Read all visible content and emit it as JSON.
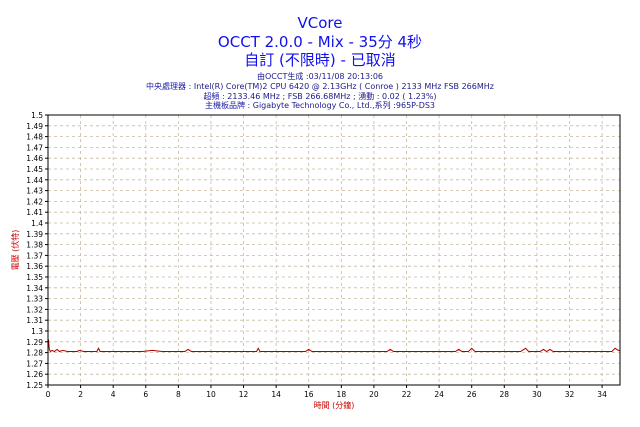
{
  "header": {
    "title": "VCore",
    "subtitle1": "OCCT 2.0.0 - Mix - 35分 4秒",
    "subtitle2": "自訂 (不限時) - 已取消",
    "generated": "由OCCT生成 :03/11/08 20:13:06",
    "cpu_label": "中央處理器 :",
    "cpu_value": "Intel(R) Core(TM)2 CPU 6420 @ 2.13GHz ( Conroe ) 2133 MHz FSB 266MHz",
    "freq_label": "超頻 :",
    "freq_value": "2133.46 MHz ; FSB 266.68MHz ; 湧動 : 0.02 ( 1.23%)",
    "board_label": "主機板品牌 :",
    "board_value": "Gigabyte Technology Co., Ltd.,系列 :965P-DS3"
  },
  "colors": {
    "title_blue": "#1010ee",
    "axis_label_red": "#cc0000",
    "line": "#aa0000",
    "grid": "#c8b9a0",
    "frame": "#000000"
  },
  "chart_data": {
    "type": "line",
    "title": "VCore",
    "xlabel": "時間 (分鐘)",
    "ylabel": "電壓 (伏特)",
    "xlim": [
      0,
      35.1
    ],
    "ylim": [
      1.25,
      1.5
    ],
    "x_ticks": [
      0,
      2,
      4,
      6,
      8,
      10,
      12,
      14,
      16,
      18,
      20,
      22,
      24,
      26,
      28,
      30,
      32,
      34
    ],
    "x_tick_labels": [
      "0",
      "2",
      "4",
      "6",
      "8",
      "10",
      "12",
      "14",
      "16",
      "18",
      "20",
      "22",
      "24",
      "26",
      "28",
      "30",
      "32",
      "34"
    ],
    "y_ticks": [
      1.25,
      1.26,
      1.27,
      1.28,
      1.29,
      1.3,
      1.31,
      1.32,
      1.33,
      1.34,
      1.35,
      1.36,
      1.37,
      1.38,
      1.39,
      1.4,
      1.41,
      1.42,
      1.43,
      1.44,
      1.45,
      1.46,
      1.47,
      1.48,
      1.49,
      1.5
    ],
    "y_tick_labels": [
      "1.25",
      "1.26",
      "1.27",
      "1.28",
      "1.29",
      "1.3",
      "1.31",
      "1.32",
      "1.33",
      "1.34",
      "1.35",
      "1.36",
      "1.37",
      "1.38",
      "1.39",
      "1.4",
      "1.41",
      "1.42",
      "1.43",
      "1.44",
      "1.45",
      "1.46",
      "1.47",
      "1.48",
      "1.49",
      "1.5"
    ],
    "grid": true,
    "series": [
      {
        "x": [
          0,
          0.03,
          0.08,
          0.15,
          0.25,
          0.4,
          0.55,
          0.7,
          0.9,
          1.2,
          1.5,
          1.8,
          1.9,
          2.2,
          2.6,
          3.0,
          3.1,
          3.2,
          3.6,
          4.2,
          4.8,
          5.2,
          5.8,
          6.4,
          7.0,
          7.6,
          8.4,
          8.6,
          8.8,
          9.6,
          10.4,
          11.2,
          11.9,
          12.4,
          12.8,
          12.9,
          13.0,
          13.6,
          14.4,
          15.2,
          15.8,
          16.0,
          16.2,
          17.0,
          17.8,
          18.6,
          19.4,
          20.2,
          20.8,
          21.0,
          21.2,
          22.0,
          22.8,
          23.6,
          24.2,
          25.0,
          25.2,
          25.4,
          25.8,
          26.0,
          26.2,
          27.0,
          28.0,
          29.0,
          29.3,
          29.5,
          30.2,
          30.4,
          30.6,
          30.8,
          31.0,
          31.6,
          32.4,
          33.2,
          34.0,
          34.6,
          34.8,
          35.0,
          35.1
        ],
        "y": [
          1.286,
          1.292,
          1.283,
          1.281,
          1.282,
          1.281,
          1.283,
          1.281,
          1.282,
          1.281,
          1.281,
          1.281,
          1.282,
          1.281,
          1.281,
          1.281,
          1.284,
          1.281,
          1.281,
          1.281,
          1.281,
          1.281,
          1.281,
          1.282,
          1.281,
          1.281,
          1.281,
          1.283,
          1.281,
          1.281,
          1.281,
          1.281,
          1.281,
          1.281,
          1.281,
          1.284,
          1.281,
          1.281,
          1.281,
          1.281,
          1.281,
          1.283,
          1.281,
          1.281,
          1.281,
          1.281,
          1.281,
          1.281,
          1.281,
          1.283,
          1.281,
          1.281,
          1.281,
          1.281,
          1.281,
          1.281,
          1.283,
          1.281,
          1.281,
          1.284,
          1.281,
          1.281,
          1.281,
          1.281,
          1.284,
          1.281,
          1.281,
          1.283,
          1.281,
          1.283,
          1.281,
          1.281,
          1.281,
          1.281,
          1.281,
          1.281,
          1.284,
          1.282,
          1.282
        ]
      }
    ]
  }
}
